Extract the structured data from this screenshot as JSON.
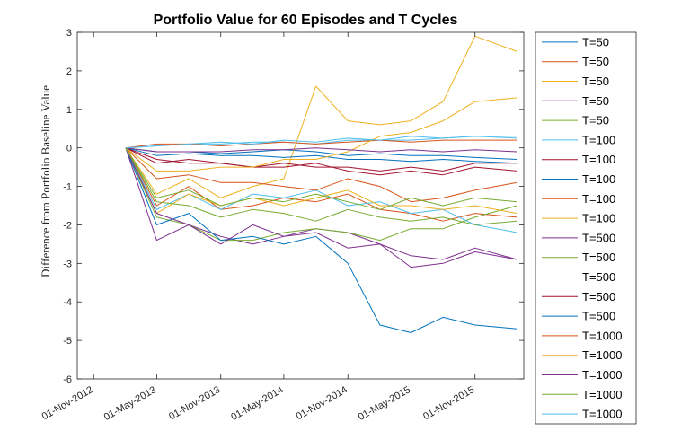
{
  "chart_data": {
    "type": "line",
    "title": "Portfolio Value for 60 Episodes and T Cycles",
    "xlabel": "",
    "ylabel": "Difference from Portfolio Baseline Value",
    "x_axis_type": "date",
    "xlim": [
      "2012-09-15",
      "2016-03-20"
    ],
    "ylim": [
      -6,
      3
    ],
    "x_tick_values": [
      "2012-11-01",
      "2013-05-01",
      "2013-11-01",
      "2014-05-01",
      "2014-11-01",
      "2015-05-01",
      "2015-11-01"
    ],
    "x_tick_labels": [
      "01-Nov-2012",
      "01-May-2013",
      "01-Nov-2013",
      "01-May-2014",
      "01-Nov-2014",
      "01-May-2015",
      "01-Nov-2015"
    ],
    "y_ticks": [
      -6,
      -5,
      -4,
      -3,
      -2,
      -1,
      0,
      1,
      2,
      3
    ],
    "grid": false,
    "legend_position": "outside-right",
    "x": [
      "2013-02-01",
      "2013-05-01",
      "2013-08-01",
      "2013-11-01",
      "2014-02-01",
      "2014-05-01",
      "2014-08-01",
      "2014-11-01",
      "2015-02-01",
      "2015-05-01",
      "2015-08-01",
      "2015-11-01",
      "2016-03-01"
    ],
    "series": [
      {
        "name": "T=50",
        "color": "#0072BD",
        "values": [
          0,
          -0.1,
          -0.1,
          -0.15,
          -0.1,
          -0.05,
          -0.1,
          -0.2,
          -0.15,
          -0.2,
          -0.2,
          -0.25,
          -0.3
        ]
      },
      {
        "name": "T=50",
        "color": "#D95319",
        "values": [
          0,
          -1.5,
          -1.0,
          -1.6,
          -1.5,
          -1.3,
          -1.4,
          -1.2,
          -1.6,
          -1.7,
          -1.9,
          -1.7,
          -1.8
        ]
      },
      {
        "name": "T=50",
        "color": "#EDB120",
        "values": [
          0,
          -1.2,
          -0.8,
          -1.3,
          -1.0,
          -0.8,
          1.6,
          0.7,
          0.6,
          0.7,
          1.2,
          2.9,
          2.5
        ]
      },
      {
        "name": "T=50",
        "color": "#7E2F8E",
        "values": [
          0,
          -2.4,
          -2.0,
          -2.3,
          -2.5,
          -2.3,
          -2.1,
          -2.2,
          -2.5,
          -2.8,
          -2.9,
          -2.6,
          -2.9
        ]
      },
      {
        "name": "T=50",
        "color": "#77AC30",
        "values": [
          0,
          -1.8,
          -2.0,
          -2.4,
          -2.4,
          -2.2,
          -2.1,
          -2.2,
          -2.4,
          -2.1,
          -2.1,
          -1.8,
          -1.5
        ]
      },
      {
        "name": "T=100",
        "color": "#4DBEEE",
        "values": [
          0,
          -1.6,
          -1.2,
          -1.6,
          -1.2,
          -1.3,
          -1.1,
          -1.5,
          -1.4,
          -1.7,
          -1.6,
          -2.0,
          -2.2
        ]
      },
      {
        "name": "T=100",
        "color": "#A2142F",
        "values": [
          0,
          -0.3,
          -0.4,
          -0.4,
          -0.5,
          -0.4,
          -0.5,
          -0.5,
          -0.6,
          -0.5,
          -0.6,
          -0.4,
          -0.4
        ]
      },
      {
        "name": "T=100",
        "color": "#0072BD",
        "values": [
          0,
          -2.0,
          -1.7,
          -2.4,
          -2.3,
          -2.5,
          -2.3,
          -3.0,
          -4.6,
          -4.8,
          -4.4,
          -4.6,
          -4.7
        ]
      },
      {
        "name": "T=100",
        "color": "#D95319",
        "values": [
          0,
          -0.8,
          -0.7,
          -0.9,
          -0.9,
          -1.0,
          -1.1,
          -0.8,
          -1.0,
          -1.4,
          -1.3,
          -1.1,
          -0.9
        ]
      },
      {
        "name": "T=100",
        "color": "#EDB120",
        "values": [
          0,
          -1.7,
          -1.2,
          -1.5,
          -1.3,
          -1.5,
          -1.3,
          -1.1,
          -1.5,
          -1.5,
          -1.6,
          -1.5,
          -1.7
        ]
      },
      {
        "name": "T=500",
        "color": "#7E2F8E",
        "values": [
          0,
          -1.7,
          -2.0,
          -2.5,
          -2.0,
          -2.3,
          -2.2,
          -2.6,
          -2.5,
          -3.1,
          -3.0,
          -2.7,
          -2.9
        ]
      },
      {
        "name": "T=500",
        "color": "#77AC30",
        "values": [
          0,
          -1.3,
          -1.1,
          -1.5,
          -1.3,
          -1.4,
          -1.2,
          -1.4,
          -1.6,
          -1.3,
          -1.5,
          -1.3,
          -1.4
        ]
      },
      {
        "name": "T=500",
        "color": "#4DBEEE",
        "values": [
          0,
          0.05,
          0.1,
          0.1,
          0.15,
          0.15,
          0.1,
          0.2,
          0.2,
          0.2,
          0.25,
          0.3,
          0.25
        ]
      },
      {
        "name": "T=500",
        "color": "#A2142F",
        "values": [
          0,
          -0.4,
          -0.3,
          -0.4,
          -0.5,
          -0.5,
          -0.4,
          -0.6,
          -0.7,
          -0.6,
          -0.7,
          -0.5,
          -0.6
        ]
      },
      {
        "name": "T=500",
        "color": "#0072BD",
        "values": [
          0,
          -0.2,
          -0.15,
          -0.2,
          -0.2,
          -0.25,
          -0.2,
          -0.3,
          -0.3,
          -0.35,
          -0.3,
          -0.35,
          -0.4
        ]
      },
      {
        "name": "T=1000",
        "color": "#D95319",
        "values": [
          0,
          0.1,
          0.1,
          0.05,
          0.1,
          0.15,
          0.1,
          0.15,
          0.2,
          0.15,
          0.2,
          0.2,
          0.2
        ]
      },
      {
        "name": "T=1000",
        "color": "#EDB120",
        "values": [
          0,
          -0.6,
          -0.6,
          -0.5,
          -0.5,
          -0.3,
          -0.3,
          -0.1,
          0.3,
          0.4,
          0.7,
          1.2,
          1.3
        ]
      },
      {
        "name": "T=1000",
        "color": "#7E2F8E",
        "values": [
          0,
          -0.1,
          -0.1,
          -0.1,
          -0.05,
          -0.05,
          0,
          -0.05,
          -0.1,
          -0.05,
          -0.1,
          -0.05,
          -0.1
        ]
      },
      {
        "name": "T=1000",
        "color": "#77AC30",
        "values": [
          0,
          -1.4,
          -1.5,
          -1.8,
          -1.6,
          -1.7,
          -1.9,
          -1.6,
          -1.8,
          -1.9,
          -1.8,
          -2.0,
          -1.9
        ]
      },
      {
        "name": "T=1000",
        "color": "#4DBEEE",
        "values": [
          0,
          0.05,
          0.1,
          0.15,
          0.1,
          0.2,
          0.15,
          0.25,
          0.2,
          0.3,
          0.25,
          0.3,
          0.3
        ]
      }
    ]
  }
}
